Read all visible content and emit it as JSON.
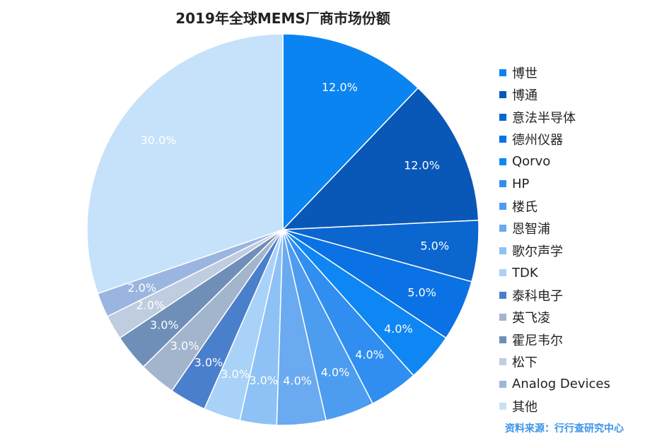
{
  "chart_data": {
    "type": "pie",
    "title": "2019年全球MEMS厂商市场份额",
    "slices": [
      {
        "label": "博世",
        "value": 12.0,
        "display": "12.0%",
        "color": "#0a84f0"
      },
      {
        "label": "博通",
        "value": 12.0,
        "display": "12.0%",
        "color": "#0958b8"
      },
      {
        "label": "意法半导体",
        "value": 5.0,
        "display": "5.0%",
        "color": "#0b66d0"
      },
      {
        "label": "德州仪器",
        "value": 5.0,
        "display": "5.0%",
        "color": "#0a72e4"
      },
      {
        "label": "Qorvo",
        "value": 4.0,
        "display": "4.0%",
        "color": "#0e87f4"
      },
      {
        "label": "HP",
        "value": 4.0,
        "display": "4.0%",
        "color": "#2f8ef0"
      },
      {
        "label": "楼氏",
        "value": 4.0,
        "display": "4.0%",
        "color": "#4c9cf0"
      },
      {
        "label": "恩智浦",
        "value": 4.0,
        "display": "4.0%",
        "color": "#6aaaf0"
      },
      {
        "label": "歌尔声学",
        "value": 3.0,
        "display": "3.0%",
        "color": "#8ec2f6"
      },
      {
        "label": "TDK",
        "value": 3.0,
        "display": "3.0%",
        "color": "#a8d2f8"
      },
      {
        "label": "泰科电子",
        "value": 3.0,
        "display": "3.0%",
        "color": "#4a7fcc"
      },
      {
        "label": "英飞凌",
        "value": 3.0,
        "display": "3.0%",
        "color": "#a3b5cc"
      },
      {
        "label": "霍尼韦尔",
        "value": 3.0,
        "display": "3.0%",
        "color": "#6f8fb8"
      },
      {
        "label": "松下",
        "value": 2.0,
        "display": "2.0%",
        "color": "#bfcde0"
      },
      {
        "label": "Analog Devices",
        "value": 2.0,
        "display": "2.0%",
        "color": "#9ab6e0"
      },
      {
        "label": "其他",
        "value": 30.0,
        "display": "30.0%",
        "color": "#c6e1fa"
      }
    ],
    "legend_position": "right"
  },
  "source_note": "资料来源：行行查研究中心"
}
